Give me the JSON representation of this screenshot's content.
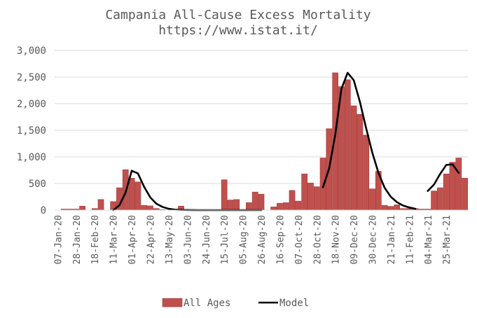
{
  "chart_data": {
    "type": "bar+line",
    "title": "Campania All-Cause Excess Mortality",
    "subtitle": "https://www.istat.it/",
    "xlabel": "",
    "ylabel": "",
    "ylim": [
      0,
      3000
    ],
    "yticks": [
      0,
      500,
      1000,
      1500,
      2000,
      2500,
      3000
    ],
    "ytick_labels": [
      "0",
      "500",
      "1,000",
      "1,500",
      "2,000",
      "2,500",
      "3,000"
    ],
    "grid": true,
    "legend_position": "bottom",
    "x_tick_labels": [
      "07-Jan-20",
      "28-Jan-20",
      "18-Feb-20",
      "11-Mar-20",
      "01-Apr-20",
      "22-Apr-20",
      "13-May-20",
      "03-Jun-20",
      "24-Jun-20",
      "15-Jul-20",
      "05-Aug-20",
      "26-Aug-20",
      "16-Sep-20",
      "07-Oct-20",
      "28-Oct-20",
      "18-Nov-20",
      "09-Dec-20",
      "30-Dec-20",
      "21-Jan-21",
      "11-Feb-21",
      "04-Mar-21",
      "25-Mar-21"
    ],
    "tick_every_weeks": 3,
    "series": [
      {
        "name": "All Ages",
        "kind": "bar",
        "color": "#c0504d",
        "values": [
          0,
          20,
          20,
          20,
          75,
          0,
          30,
          200,
          0,
          160,
          420,
          760,
          600,
          530,
          90,
          80,
          30,
          10,
          0,
          0,
          75,
          0,
          0,
          0,
          0,
          0,
          0,
          570,
          190,
          200,
          0,
          140,
          340,
          300,
          0,
          60,
          130,
          140,
          370,
          170,
          680,
          510,
          440,
          980,
          1530,
          2580,
          2320,
          2450,
          1960,
          1800,
          1410,
          400,
          730,
          90,
          70,
          100,
          30,
          30,
          30,
          20,
          20,
          360,
          420,
          680,
          900,
          980,
          600
        ]
      },
      {
        "name": "Model",
        "kind": "line",
        "color": "#000000",
        "start_index": 9,
        "values": [
          0,
          90,
          330,
          740,
          690,
          440,
          240,
          120,
          60,
          25,
          10,
          5,
          2,
          1,
          0,
          0,
          0,
          0,
          0,
          0,
          0,
          0,
          0,
          0,
          0,
          null,
          null,
          null,
          null,
          null,
          null,
          null,
          null,
          null,
          430,
          780,
          1420,
          2280,
          2580,
          2440,
          2030,
          1540,
          1080,
          700,
          420,
          250,
          150,
          85,
          50,
          25,
          null,
          360,
          480,
          680,
          850,
          860,
          700
        ]
      }
    ]
  }
}
